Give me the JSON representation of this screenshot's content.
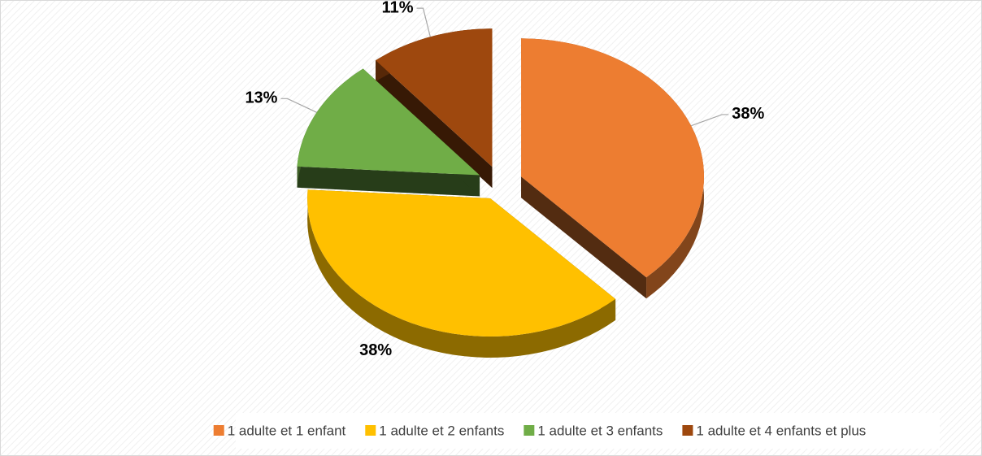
{
  "chart_data": {
    "type": "pie",
    "categories": [
      "1 adulte et 1 enfant",
      "1 adulte et 2 enfants",
      "1 adulte et 3 enfants",
      "1 adulte et 4 enfants et plus"
    ],
    "values": [
      38,
      38,
      13,
      11
    ],
    "value_labels": [
      "38%",
      "38%",
      "13%",
      "11%"
    ],
    "colors": [
      "#ed7d31",
      "#ffc000",
      "#70ad47",
      "#9e480e"
    ],
    "legend": "bottom"
  }
}
